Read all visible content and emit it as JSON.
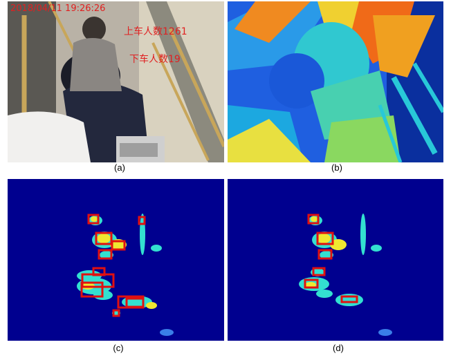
{
  "figure": {
    "panels": [
      {
        "caption": "(a)",
        "kind": "camera-photo",
        "timestamp": "2018/04/11 19:26:26",
        "boarding_label": "上车人数",
        "boarding_count": "1261",
        "alighting_label": "下车人数",
        "alighting_count": "19",
        "overlay_color": "#e02020"
      },
      {
        "caption": "(b)",
        "kind": "depth-map-colormap"
      },
      {
        "caption": "(c)",
        "kind": "segmented-depth-with-detections",
        "box_color": "#e01010"
      },
      {
        "caption": "(d)",
        "kind": "segmented-depth-filtered-detections",
        "box_color": "#e01010"
      }
    ],
    "colors": {
      "background_blue": "#00008f",
      "cyan": "#33e0d0",
      "yellow": "#f0e830",
      "orange": "#ff9a20"
    }
  }
}
